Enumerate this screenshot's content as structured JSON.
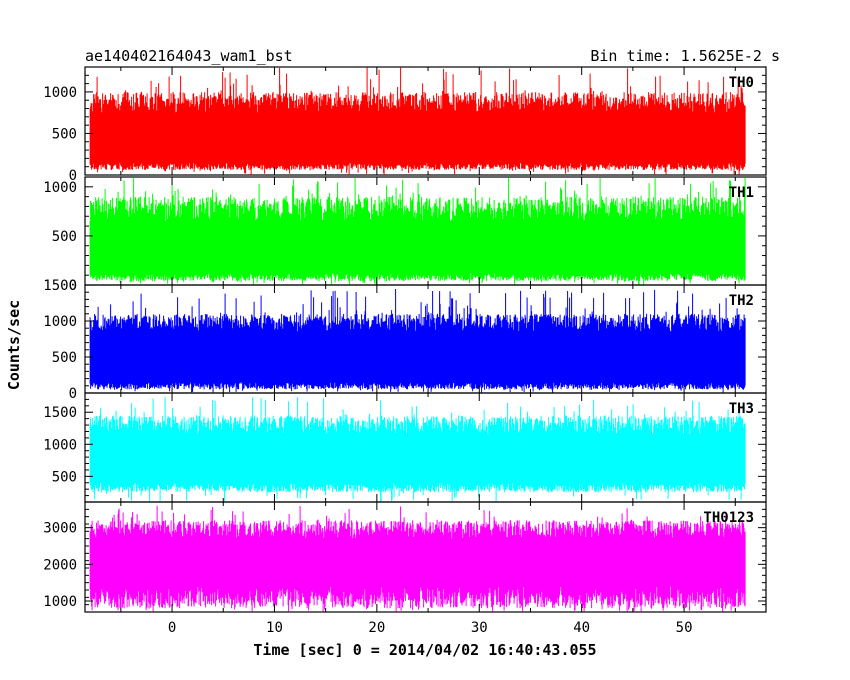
{
  "header": {
    "left": "ae140402164043_wam1_bst",
    "right": "Bin time: 1.5625E-2 s"
  },
  "axes": {
    "xlabel": "Time [sec] 0 = 2014/04/02 16:40:43.055",
    "ylabel": "Counts/sec"
  },
  "chart_data": {
    "type": "line",
    "title": "ae140402164043_wam1_bst",
    "subtitle": "Bin time: 1.5625E-2 s",
    "xlabel": "Time [sec] 0 = 2014/04/02 16:40:43.055",
    "ylabel": "Counts/sec",
    "xlim": [
      -8.5,
      58
    ],
    "data_x_range": [
      -8,
      56
    ],
    "x_ticks": [
      0,
      10,
      20,
      30,
      40,
      50
    ],
    "x_tick_labels": [
      "0",
      "10",
      "20",
      "30",
      "40",
      "50"
    ],
    "bin_time": 0.015625,
    "series": [
      {
        "name": "TH0",
        "color": "#ff0000",
        "ylim": [
          0,
          1300
        ],
        "y_ticks": [
          0,
          500,
          1000
        ],
        "y_tick_labels": [
          "0",
          "500",
          "1000"
        ],
        "baseline": 450,
        "low_range": [
          60,
          150
        ],
        "high_range": [
          750,
          1000
        ],
        "peak_max": 1300
      },
      {
        "name": "TH1",
        "color": "#00ff00",
        "ylim": [
          0,
          1100
        ],
        "y_ticks": [
          0,
          500,
          1000
        ],
        "y_tick_labels": [
          "0",
          "500",
          "1000"
        ],
        "baseline": 400,
        "low_range": [
          40,
          120
        ],
        "high_range": [
          650,
          900
        ],
        "peak_max": 1100
      },
      {
        "name": "TH2",
        "color": "#0000ff",
        "ylim": [
          0,
          1500
        ],
        "y_ticks": [
          0,
          500,
          1000,
          1500
        ],
        "y_tick_labels": [
          "0",
          "500",
          "1000",
          "1500"
        ],
        "baseline": 550,
        "low_range": [
          50,
          150
        ],
        "high_range": [
          850,
          1100
        ],
        "peak_max": 1450
      },
      {
        "name": "TH3",
        "color": "#00ffff",
        "ylim": [
          100,
          1800
        ],
        "y_ticks": [
          500,
          1000,
          1500
        ],
        "y_tick_labels": [
          "500",
          "1000",
          "1500"
        ],
        "baseline": 800,
        "low_range": [
          250,
          400
        ],
        "high_range": [
          1150,
          1450
        ],
        "peak_max": 1750
      },
      {
        "name": "TH0123",
        "color": "#ff00ff",
        "ylim": [
          700,
          3700
        ],
        "y_ticks": [
          1000,
          2000,
          3000
        ],
        "y_tick_labels": [
          "1000",
          "2000",
          "3000"
        ],
        "baseline": 2000,
        "low_range": [
          800,
          1400
        ],
        "high_range": [
          2700,
          3200
        ],
        "peak_max": 3600
      }
    ]
  }
}
